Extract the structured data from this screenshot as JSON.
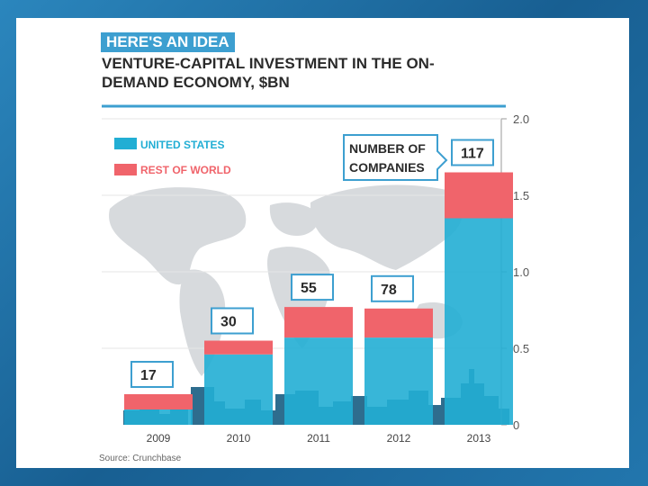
{
  "kicker": "HERE'S AN IDEA",
  "title": "VENTURE-CAPITAL INVESTMENT IN THE ON-DEMAND ECONOMY, $BN",
  "source": "Source: Crunchbase",
  "callout": "NUMBER OF COMPANIES",
  "colors": {
    "us": "#22aed4",
    "row": "#f0646b",
    "skyline": "#2e6d8e",
    "accent": "#3d9fd0",
    "map": "#d7dadd"
  },
  "chart_data": {
    "type": "bar",
    "stacked": true,
    "title": "VENTURE-CAPITAL INVESTMENT IN THE ON-DEMAND ECONOMY, $BN",
    "categories": [
      "2009",
      "2010",
      "2011",
      "2012",
      "2013"
    ],
    "series": [
      {
        "name": "UNITED STATES",
        "values": [
          0.1,
          0.46,
          0.57,
          0.57,
          1.35
        ]
      },
      {
        "name": "REST OF WORLD",
        "values": [
          0.1,
          0.09,
          0.2,
          0.19,
          0.3
        ]
      }
    ],
    "companies": [
      17,
      30,
      55,
      78,
      117
    ],
    "ylim": [
      0,
      2.0
    ],
    "yticks": [
      "0",
      "0.5",
      "1.0",
      "1.5",
      "2.0"
    ],
    "ytick_values": [
      0,
      0.5,
      1.0,
      1.5,
      2.0
    ],
    "yaxis_position": "right",
    "legend_position": "top-left"
  }
}
